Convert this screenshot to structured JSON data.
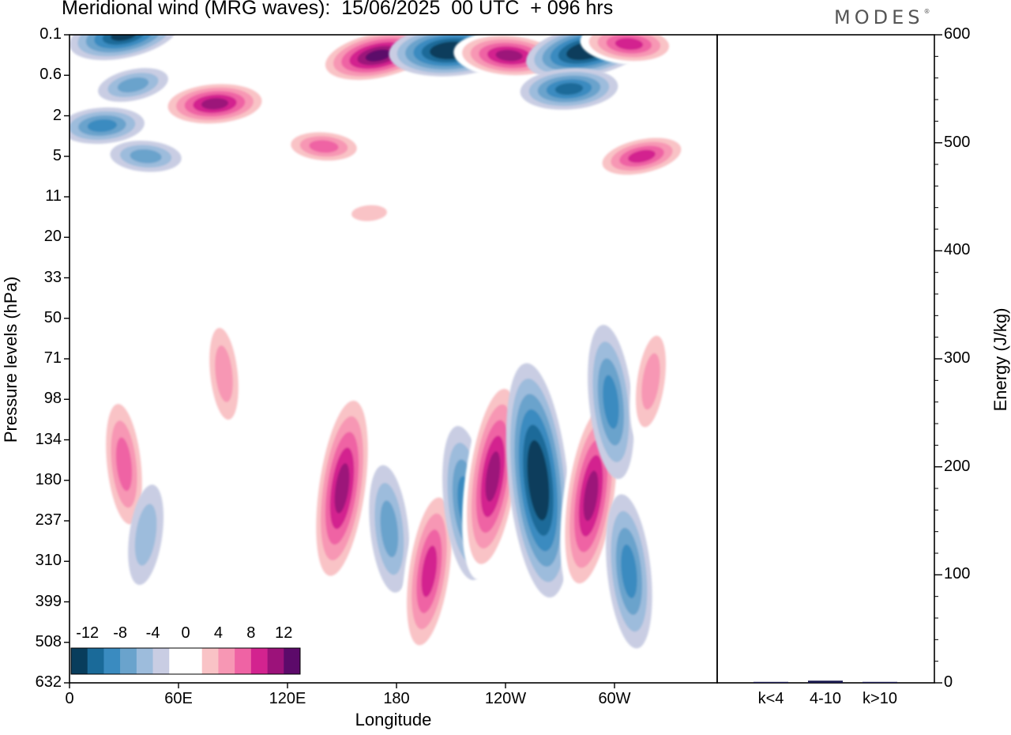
{
  "title": "Meridional wind (MRG waves):  15/06/2025  00 UTC  + 096 hrs",
  "brand": "MODES",
  "brand_mark": "®",
  "chart_data": [
    {
      "type": "heatmap",
      "title": "Meridional wind (MRG waves):  15/06/2025  00 UTC  + 096 hrs",
      "xlabel": "Longitude",
      "ylabel": "Pressure levels (hPa)",
      "x_ticks": [
        "0",
        "60E",
        "120E",
        "180",
        "120W",
        "60W"
      ],
      "y_ticks": [
        "0.1",
        "0.6",
        "2",
        "5",
        "11",
        "20",
        "33",
        "50",
        "71",
        "98",
        "134",
        "180",
        "237",
        "310",
        "399",
        "508",
        "632"
      ],
      "colorbar": {
        "labels": [
          "-12",
          "-8",
          "-4",
          "0",
          "4",
          "8",
          "12"
        ],
        "levels": [
          -14,
          -12,
          -10,
          -8,
          -6,
          -4,
          -2,
          2,
          4,
          6,
          8,
          10,
          12,
          14
        ],
        "colors": [
          "#083d5c",
          "#1a6a99",
          "#3a8bc0",
          "#6aa3cc",
          "#9dbcdc",
          "#c9cde3",
          "#ffffff",
          "#ffffff",
          "#f9c3c6",
          "#f797b4",
          "#ef63a4",
          "#d3238f",
          "#9c127a",
          "#5c0a6a"
        ]
      },
      "features": [
        {
          "lon": 30,
          "p": 0.1,
          "value": -12
        },
        {
          "lon": 18,
          "p": 2.5,
          "value": -8
        },
        {
          "lon": 42,
          "p": 5,
          "value": -6
        },
        {
          "lon": 35,
          "p": 0.8,
          "value": -6
        },
        {
          "lon": 80,
          "p": 1.4,
          "value": 12
        },
        {
          "lon": 140,
          "p": 4,
          "value": 8
        },
        {
          "lon": 170,
          "p": 0.25,
          "value": 14
        },
        {
          "lon": 210,
          "p": 0.2,
          "value": -14
        },
        {
          "lon": 242,
          "p": 0.25,
          "value": 12
        },
        {
          "lon": 285,
          "p": 0.2,
          "value": -14
        },
        {
          "lon": 275,
          "p": 0.9,
          "value": -10
        },
        {
          "lon": 308,
          "p": 0.15,
          "value": 10
        },
        {
          "lon": 315,
          "p": 5,
          "value": 10
        },
        {
          "lon": 165,
          "p": 14,
          "value": 4
        },
        {
          "lon": 30,
          "p": 160,
          "value": 8
        },
        {
          "lon": 42,
          "p": 260,
          "value": -4
        },
        {
          "lon": 85,
          "p": 80,
          "value": 6
        },
        {
          "lon": 150,
          "p": 190,
          "value": 12
        },
        {
          "lon": 176,
          "p": 250,
          "value": -6
        },
        {
          "lon": 198,
          "p": 330,
          "value": 10
        },
        {
          "lon": 218,
          "p": 210,
          "value": -8
        },
        {
          "lon": 233,
          "p": 175,
          "value": 12
        },
        {
          "lon": 258,
          "p": 180,
          "value": -14
        },
        {
          "lon": 287,
          "p": 200,
          "value": 12
        },
        {
          "lon": 298,
          "p": 100,
          "value": -8
        },
        {
          "lon": 320,
          "p": 85,
          "value": 6
        },
        {
          "lon": 308,
          "p": 330,
          "value": -8
        }
      ]
    },
    {
      "type": "bar",
      "ylabel": "Energy (J/kg)",
      "ylim": [
        0,
        600
      ],
      "y_ticks": [
        "0",
        "100",
        "200",
        "300",
        "400",
        "500",
        "600"
      ],
      "categories": [
        "k<4",
        "4-10",
        "k>10"
      ],
      "values": [
        0,
        2,
        0
      ],
      "colors": [
        "#1a1a4e",
        "#1a1a4e",
        "#1a1a4e"
      ]
    }
  ]
}
